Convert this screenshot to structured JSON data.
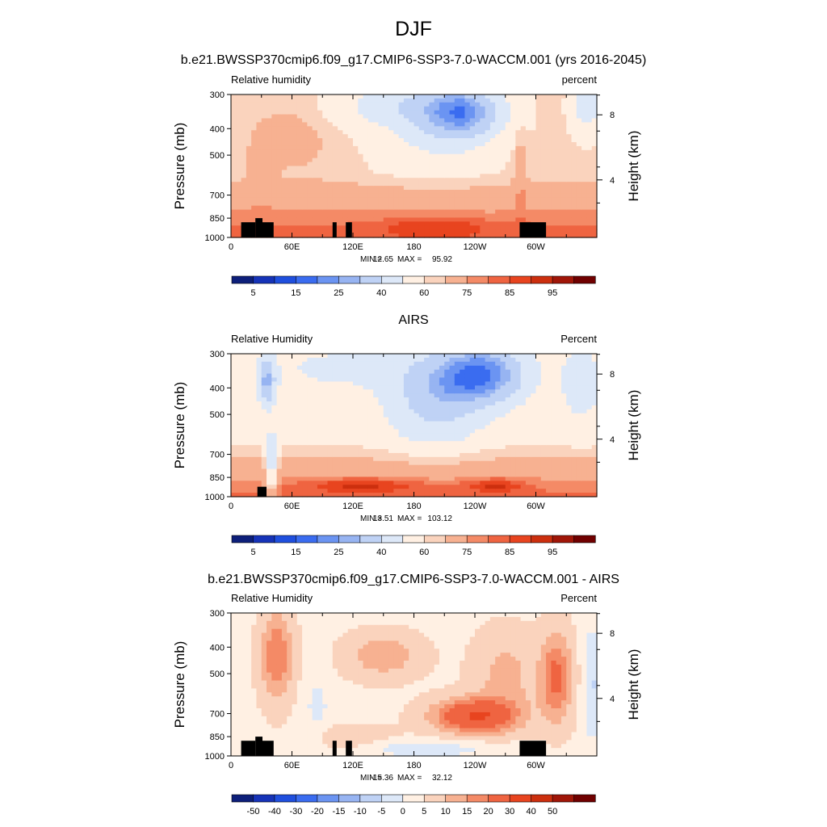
{
  "figure": {
    "title": "DJF"
  },
  "colors": {
    "rh_scale": [
      "#0d1f7a",
      "#1633b8",
      "#1f4fde",
      "#3a6cf0",
      "#6b94f2",
      "#97b4f2",
      "#bfd2f5",
      "#dde8f8",
      "#fff0e3",
      "#fad3bd",
      "#f7b191",
      "#f48a66",
      "#ef6441",
      "#e8441f",
      "#cc2f0e",
      "#a01608",
      "#700000"
    ],
    "diff_scale": [
      "#0d1f7a",
      "#1633b8",
      "#1f4fde",
      "#3a6cf0",
      "#6b94f2",
      "#97b4f2",
      "#bfd2f5",
      "#dde8f8",
      "#fff0e3",
      "#fad3bd",
      "#f7b191",
      "#f48a66",
      "#ef6441",
      "#e8441f",
      "#cc2f0e",
      "#a01608",
      "#700000"
    ],
    "terrain": "#000000"
  },
  "chart_data": [
    {
      "type": "heatmap",
      "title": "b.e21.BWSSP370cmip6.f09_g17.CMIP6-SSP3-7.0-WACCM.001 (yrs 2016-2045)",
      "left_label": "Relative humidity",
      "right_label": "percent",
      "xlabel": "",
      "ylabel": "Pressure (mb)",
      "ylabel_right": "Height (km)",
      "x_ticks": [
        "0",
        "60E",
        "120E",
        "180",
        "120W",
        "60W"
      ],
      "x_tick_lon": [
        0,
        60,
        120,
        180,
        240,
        300
      ],
      "xlim": [
        0,
        360
      ],
      "y_ticks": [
        "300",
        "400",
        "500",
        "700",
        "850",
        "1000"
      ],
      "y_tick_values": [
        300,
        400,
        500,
        700,
        850,
        1000
      ],
      "ylim": [
        1000,
        300
      ],
      "y_scale": "log",
      "height_ticks": [
        "8",
        "4"
      ],
      "height_tick_pressure": [
        356,
        616
      ],
      "min_label": "MIN =",
      "min_value": "12.65",
      "max_label": "MAX =",
      "max_value": "95.92",
      "colorbar_labels": [
        "5",
        "15",
        "25",
        "40",
        "60",
        "75",
        "85",
        "95"
      ],
      "colorbar_levels": [
        5,
        10,
        15,
        20,
        25,
        30,
        40,
        50,
        60,
        65,
        75,
        80,
        85,
        90,
        95
      ],
      "terrain_lon": [
        [
          10,
          24,
          880
        ],
        [
          24,
          31,
          850
        ],
        [
          31,
          42,
          880
        ],
        [
          100,
          104,
          880
        ],
        [
          113,
          119,
          880
        ],
        [
          284,
          310,
          880
        ]
      ]
    },
    {
      "type": "heatmap",
      "title": "AIRS",
      "left_label": "Relative Humidity",
      "right_label": "Percent",
      "xlabel": "",
      "ylabel": "Pressure (mb)",
      "ylabel_right": "Height (km)",
      "x_ticks": [
        "0",
        "60E",
        "120E",
        "180",
        "120W",
        "60W"
      ],
      "x_tick_lon": [
        0,
        60,
        120,
        180,
        240,
        300
      ],
      "xlim": [
        0,
        360
      ],
      "y_ticks": [
        "300",
        "400",
        "500",
        "700",
        "850",
        "1000"
      ],
      "y_tick_values": [
        300,
        400,
        500,
        700,
        850,
        1000
      ],
      "ylim": [
        1000,
        300
      ],
      "y_scale": "log",
      "height_ticks": [
        "8",
        "4"
      ],
      "height_tick_pressure": [
        356,
        616
      ],
      "min_label": "MIN =",
      "min_value": "13.51",
      "max_label": "MAX =",
      "max_value": "103.12",
      "colorbar_labels": [
        "5",
        "15",
        "25",
        "40",
        "60",
        "75",
        "85",
        "95"
      ],
      "colorbar_levels": [
        5,
        10,
        15,
        20,
        25,
        30,
        40,
        50,
        60,
        65,
        75,
        80,
        85,
        90,
        95
      ],
      "terrain_lon": [
        [
          26,
          35,
          920
        ]
      ]
    },
    {
      "type": "heatmap",
      "title": "b.e21.BWSSP370cmip6.f09_g17.CMIP6-SSP3-7.0-WACCM.001 - AIRS",
      "left_label": "Relative Humidity",
      "right_label": "Percent",
      "xlabel": "",
      "ylabel": "Pressure (mb)",
      "ylabel_right": "Height (km)",
      "x_ticks": [
        "0",
        "60E",
        "120E",
        "180",
        "120W",
        "60W"
      ],
      "x_tick_lon": [
        0,
        60,
        120,
        180,
        240,
        300
      ],
      "xlim": [
        0,
        360
      ],
      "y_ticks": [
        "300",
        "400",
        "500",
        "700",
        "850",
        "1000"
      ],
      "y_tick_values": [
        300,
        400,
        500,
        700,
        850,
        1000
      ],
      "ylim": [
        1000,
        300
      ],
      "y_scale": "log",
      "height_ticks": [
        "8",
        "4"
      ],
      "height_tick_pressure": [
        356,
        616
      ],
      "min_label": "MIN =",
      "min_value": "-15.36",
      "max_label": "MAX =",
      "max_value": "32.12",
      "colorbar_labels": [
        "-50",
        "-40",
        "-30",
        "-20",
        "-15",
        "-10",
        "-5",
        "0",
        "5",
        "10",
        "15",
        "20",
        "30",
        "40",
        "50"
      ],
      "colorbar_levels": [
        -50,
        -40,
        -30,
        -20,
        -15,
        -10,
        -5,
        0,
        5,
        10,
        15,
        20,
        30,
        40,
        50
      ],
      "terrain_lon": [
        [
          10,
          24,
          880
        ],
        [
          24,
          31,
          850
        ],
        [
          31,
          42,
          880
        ],
        [
          100,
          104,
          880
        ],
        [
          113,
          119,
          880
        ],
        [
          284,
          310,
          880
        ]
      ]
    }
  ]
}
